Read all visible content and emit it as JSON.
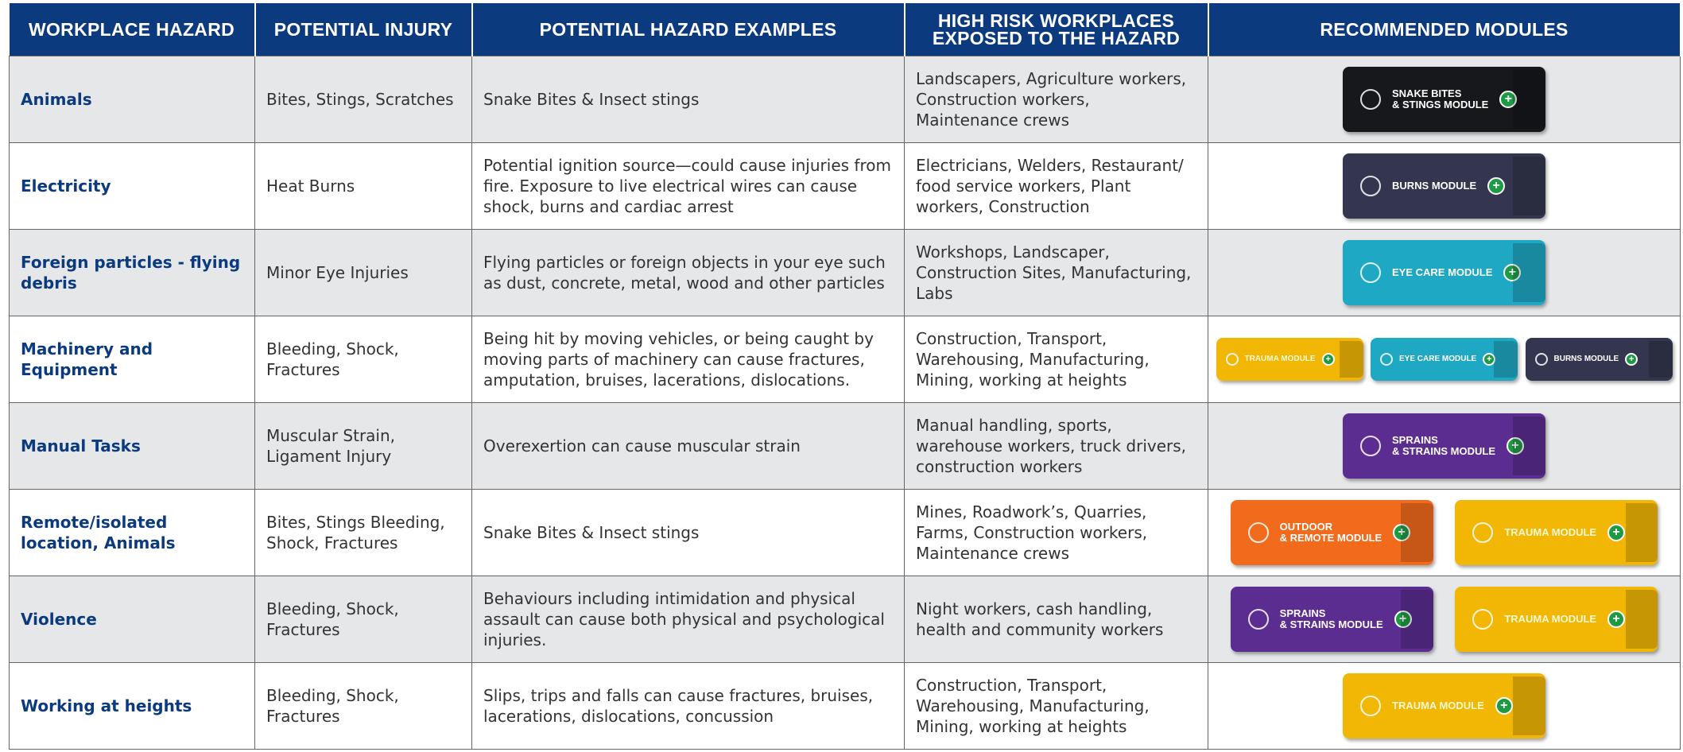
{
  "header": {
    "columns": [
      "WORKPLACE HAZARD",
      "POTENTIAL INJURY",
      "POTENTIAL HAZARD EXAMPLES",
      "HIGH RISK WORKPLACES EXPOSED TO THE HAZARD",
      "RECOMMENDED MODULES"
    ]
  },
  "rows": [
    {
      "hazard": "Animals",
      "injury": "Bites, Stings, Scratches",
      "examples": "Snake Bites & Insect stings",
      "workplaces": "Landscapers, Agriculture workers, Construction workers, Maintenance crews",
      "modules": [
        {
          "lines": [
            "SNAKE BITES",
            "& STINGS MODULE"
          ],
          "color": "#16181b"
        }
      ]
    },
    {
      "hazard": "Electricity",
      "injury": "Heat Burns",
      "examples": "Potential ignition source—could cause injuries from fire. Exposure to live electrical wires can cause shock, burns and cardiac arrest",
      "workplaces": "Electricians, Welders, Restaurant/ food service workers, Plant workers, Construction",
      "modules": [
        {
          "lines": [
            "BURNS MODULE"
          ],
          "color": "#34364f"
        }
      ]
    },
    {
      "hazard": "Foreign particles - flying debris",
      "injury": "Minor Eye Injuries",
      "examples": "Flying particles or foreign objects in your eye such as dust, concrete, metal, wood and other particles",
      "workplaces": "Workshops, Landscaper, Construction Sites, Manufacturing, Labs",
      "modules": [
        {
          "lines": [
            "EYE CARE MODULE"
          ],
          "color": "#1fa8c4"
        }
      ]
    },
    {
      "hazard": "Machinery and Equipment",
      "injury": "Bleeding, Shock, Fractures",
      "examples": "Being hit by moving vehicles, or being caught by moving parts of machinery can cause fractures, amputation, bruises, lacerations, dislocations.",
      "workplaces": "Construction, Transport, Warehousing, Manufacturing, Mining, working at heights",
      "modules": [
        {
          "lines": [
            "TRAUMA MODULE"
          ],
          "color": "#f2b705"
        },
        {
          "lines": [
            "EYE CARE MODULE"
          ],
          "color": "#1fa8c4"
        },
        {
          "lines": [
            "BURNS MODULE"
          ],
          "color": "#34364f"
        }
      ]
    },
    {
      "hazard": "Manual Tasks",
      "injury": "Muscular Strain, Ligament Injury",
      "examples": "Overexertion can cause muscular strain",
      "workplaces": "Manual handling, sports, warehouse workers, truck drivers, construction workers",
      "modules": [
        {
          "lines": [
            "SPRAINS",
            "& STRAINS MODULE"
          ],
          "color": "#5b2d91"
        }
      ]
    },
    {
      "hazard": "Remote/isolated location, Animals",
      "injury": "Bites, Stings Bleeding, Shock, Fractures",
      "examples": "Snake Bites & Insect stings",
      "workplaces": "Mines, Roadwork’s, Quarries, Farms, Construction workers, Maintenance crews",
      "modules": [
        {
          "lines": [
            "OUTDOOR",
            "& REMOTE MODULE"
          ],
          "color": "#f26b1d"
        },
        {
          "lines": [
            "TRAUMA MODULE"
          ],
          "color": "#f2b705"
        }
      ]
    },
    {
      "hazard": "Violence",
      "injury": "Bleeding, Shock, Fractures",
      "examples": "Behaviours including intimidation and physical assault can cause both physical and psychological injuries.",
      "workplaces": "Night workers, cash handling, health and community workers",
      "modules": [
        {
          "lines": [
            "SPRAINS",
            "& STRAINS MODULE"
          ],
          "color": "#5b2d91"
        },
        {
          "lines": [
            "TRAUMA MODULE"
          ],
          "color": "#f2b705"
        }
      ]
    },
    {
      "hazard": "Working at heights",
      "injury": "Bleeding, Shock, Fractures",
      "examples": "Slips, trips and falls can cause fractures, bruises, lacerations, dislocations, concussion",
      "workplaces": "Construction, Transport, Warehousing, Manufacturing, Mining, working at heights",
      "modules": [
        {
          "lines": [
            "TRAUMA MODULE"
          ],
          "color": "#f2b705"
        }
      ]
    }
  ]
}
